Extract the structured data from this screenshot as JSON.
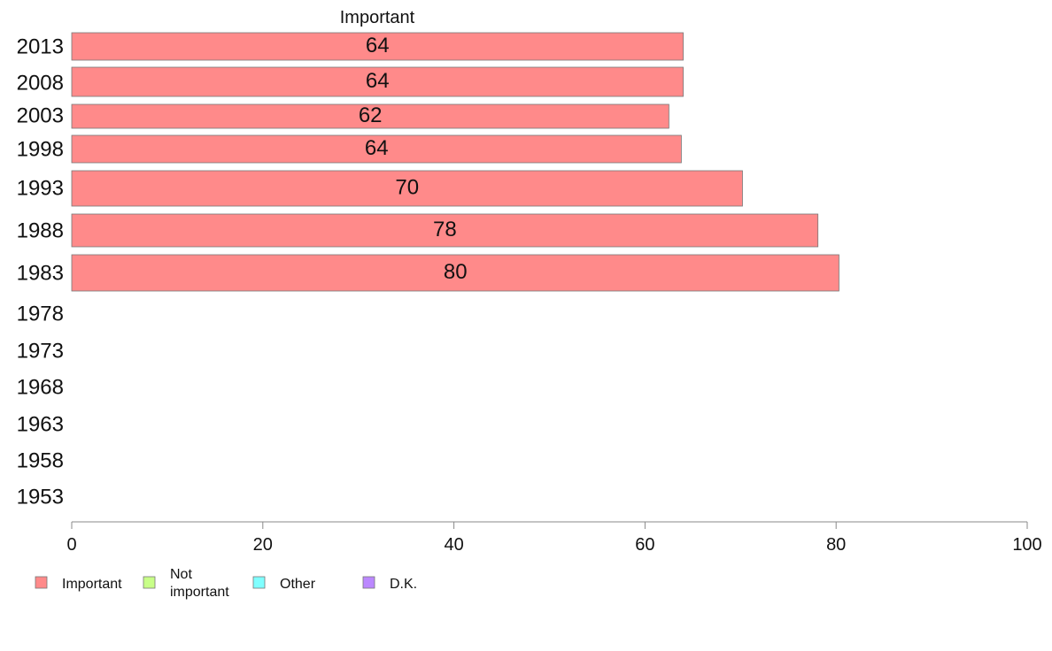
{
  "chart_data": {
    "type": "bar",
    "orientation": "horizontal",
    "series_heading": "Important",
    "categories": [
      "2013",
      "2008",
      "2003",
      "1998",
      "1993",
      "1988",
      "1983",
      "1978",
      "1973",
      "1968",
      "1963",
      "1958",
      "1953"
    ],
    "series": [
      {
        "name": "Important",
        "color": "#ff8a8a",
        "values": [
          64,
          64,
          62.5,
          63.8,
          70.2,
          78.1,
          80.3,
          null,
          null,
          null,
          null,
          null,
          null
        ],
        "labels": [
          "64",
          "64",
          "62",
          "64",
          "70",
          "78",
          "80",
          null,
          null,
          null,
          null,
          null,
          null
        ]
      }
    ],
    "legend": [
      {
        "name": "Important",
        "color": "#ff8a8a"
      },
      {
        "name": "Not important",
        "color": "#c8ff88"
      },
      {
        "name": "Other",
        "color": "#80ffff"
      },
      {
        "name": "D.K.",
        "color": "#bb88ff"
      }
    ],
    "legend_position": "bottom-left",
    "xlim": [
      0,
      100
    ],
    "xticks": [
      0,
      20,
      40,
      60,
      80,
      100
    ],
    "grid": false
  }
}
